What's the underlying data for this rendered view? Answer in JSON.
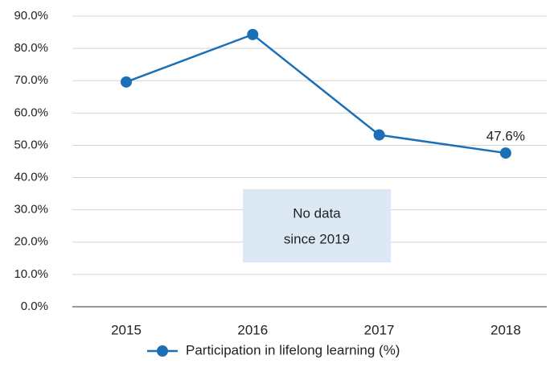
{
  "chart_data": {
    "type": "line",
    "categories": [
      "2015",
      "2016",
      "2017",
      "2018"
    ],
    "series": [
      {
        "name": "Participation in lifelong learning (%)",
        "color": "#1a6fb5",
        "values": [
          69.6,
          84.3,
          53.2,
          47.6
        ],
        "value_labels": [
          null,
          null,
          null,
          "47.6%"
        ]
      }
    ],
    "ylim": [
      0,
      90
    ],
    "yticks": [
      {
        "value": 0,
        "label": "0.0%"
      },
      {
        "value": 10,
        "label": "10.0%"
      },
      {
        "value": 20,
        "label": "20.0%"
      },
      {
        "value": 30,
        "label": "30.0%"
      },
      {
        "value": 40,
        "label": "40.0%"
      },
      {
        "value": 50,
        "label": "50.0%"
      },
      {
        "value": 60,
        "label": "60.0%"
      },
      {
        "value": 70,
        "label": "70.0%"
      },
      {
        "value": 80,
        "label": "80.0%"
      },
      {
        "value": 90,
        "label": "90.0%"
      }
    ],
    "grid": true,
    "annotation": [
      "No data",
      "since 2019"
    ],
    "legend": "bottom"
  }
}
